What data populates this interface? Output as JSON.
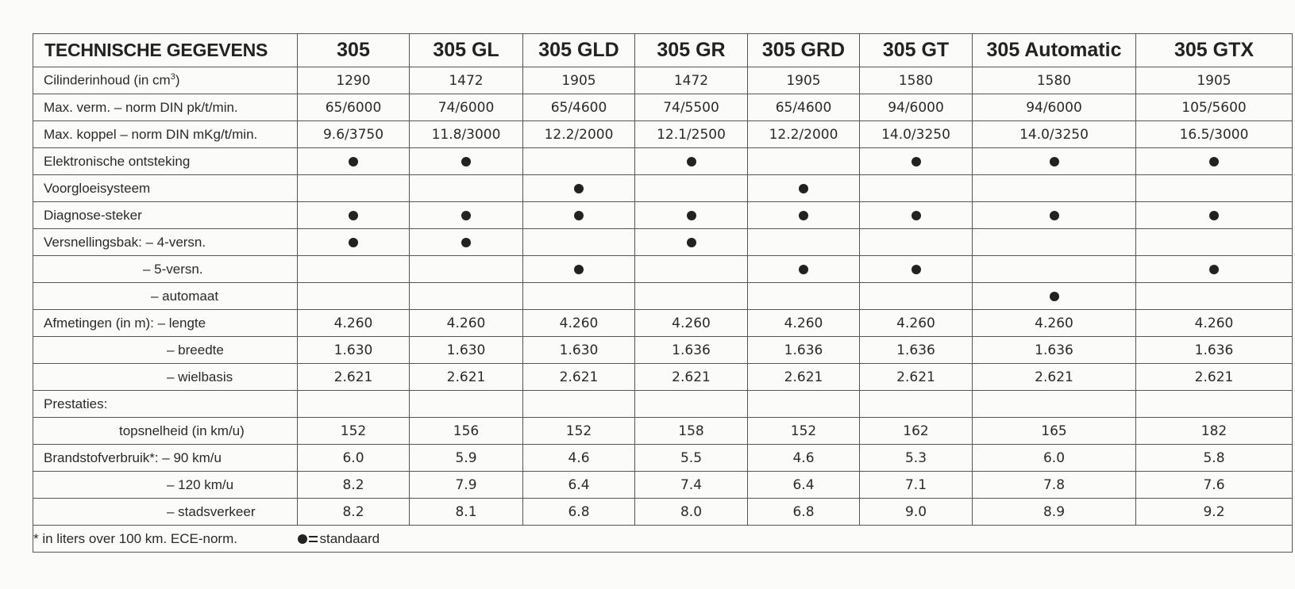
{
  "table": {
    "title": "TECHNISCHE GEGEVENS",
    "models": [
      "305",
      "305 GL",
      "305 GLD",
      "305 GR",
      "305 GRD",
      "305 GT",
      "305 Automatic",
      "305 GTX"
    ],
    "rows": [
      {
        "label": "Cilinderinhoud (in cm",
        "sup": "3",
        "suffix": ")",
        "indent": 0,
        "values": [
          "1290",
          "1472",
          "1905",
          "1472",
          "1905",
          "1580",
          "1580",
          "1905"
        ]
      },
      {
        "label": "Max. verm.  – norm DIN pk/t/min.",
        "indent": 0,
        "values": [
          "65/6000",
          "74/6000",
          "65/4600",
          "74/5500",
          "65/4600",
          "94/6000",
          "94/6000",
          "105/5600"
        ]
      },
      {
        "label": "Max. koppel – norm DIN mKg/t/min.",
        "indent": 0,
        "values": [
          "9.6/3750",
          "11.8/3000",
          "12.2/2000",
          "12.1/2500",
          "12.2/2000",
          "14.0/3250",
          "14.0/3250",
          "16.5/3000"
        ]
      },
      {
        "label": "Elektronische ontsteking",
        "indent": 0,
        "values": [
          "●",
          "●",
          "",
          "●",
          "",
          "●",
          "●",
          "●"
        ]
      },
      {
        "label": "Voorgloeisysteem",
        "indent": 0,
        "values": [
          "",
          "",
          "●",
          "",
          "●",
          "",
          "",
          ""
        ]
      },
      {
        "label": "Diagnose-steker",
        "indent": 0,
        "values": [
          "●",
          "●",
          "●",
          "●",
          "●",
          "●",
          "●",
          "●"
        ]
      },
      {
        "label": "Versnellingsbak: – 4-versn.",
        "indent": 0,
        "values": [
          "●",
          "●",
          "",
          "●",
          "",
          "",
          "",
          ""
        ]
      },
      {
        "label": "– 5-versn.",
        "indent": 1,
        "values": [
          "",
          "",
          "●",
          "",
          "●",
          "●",
          "",
          "●"
        ]
      },
      {
        "label": "– automaat",
        "indent": 2,
        "values": [
          "",
          "",
          "",
          "",
          "",
          "",
          "●",
          ""
        ]
      },
      {
        "label": "Afmetingen (in m): – lengte",
        "indent": 0,
        "values": [
          "4.260",
          "4.260",
          "4.260",
          "4.260",
          "4.260",
          "4.260",
          "4.260",
          "4.260"
        ]
      },
      {
        "label": "– breedte",
        "indent": 3,
        "values": [
          "1.630",
          "1.630",
          "1.630",
          "1.636",
          "1.636",
          "1.636",
          "1.636",
          "1.636"
        ]
      },
      {
        "label": "– wielbasis",
        "indent": 3,
        "values": [
          "2.621",
          "2.621",
          "2.621",
          "2.621",
          "2.621",
          "2.621",
          "2.621",
          "2.621"
        ]
      },
      {
        "label": "Prestaties:",
        "indent": 0,
        "values": [
          "",
          "",
          "",
          "",
          "",
          "",
          "",
          ""
        ]
      },
      {
        "label": "topsnelheid (in km/u)",
        "indent": 4,
        "values": [
          "152",
          "156",
          "152",
          "158",
          "152",
          "162",
          "165",
          "182"
        ]
      },
      {
        "label": "Brandstofverbruik*: – 90 km/u",
        "indent": 0,
        "values": [
          "6.0",
          "5.9",
          "4.6",
          "5.5",
          "4.6",
          "5.3",
          "6.0",
          "5.8"
        ]
      },
      {
        "label": "– 120 km/u",
        "indent": 3,
        "values": [
          "8.2",
          "7.9",
          "6.4",
          "7.4",
          "6.4",
          "7.1",
          "7.8",
          "7.6"
        ]
      },
      {
        "label": "– stadsverkeer",
        "indent": 3,
        "values": [
          "8.2",
          "8.1",
          "6.8",
          "8.0",
          "6.8",
          "9.0",
          "8.9",
          "9.2"
        ]
      }
    ],
    "footnote": "* in liters over 100 km. ECE-norm.",
    "legend": "standaard"
  }
}
